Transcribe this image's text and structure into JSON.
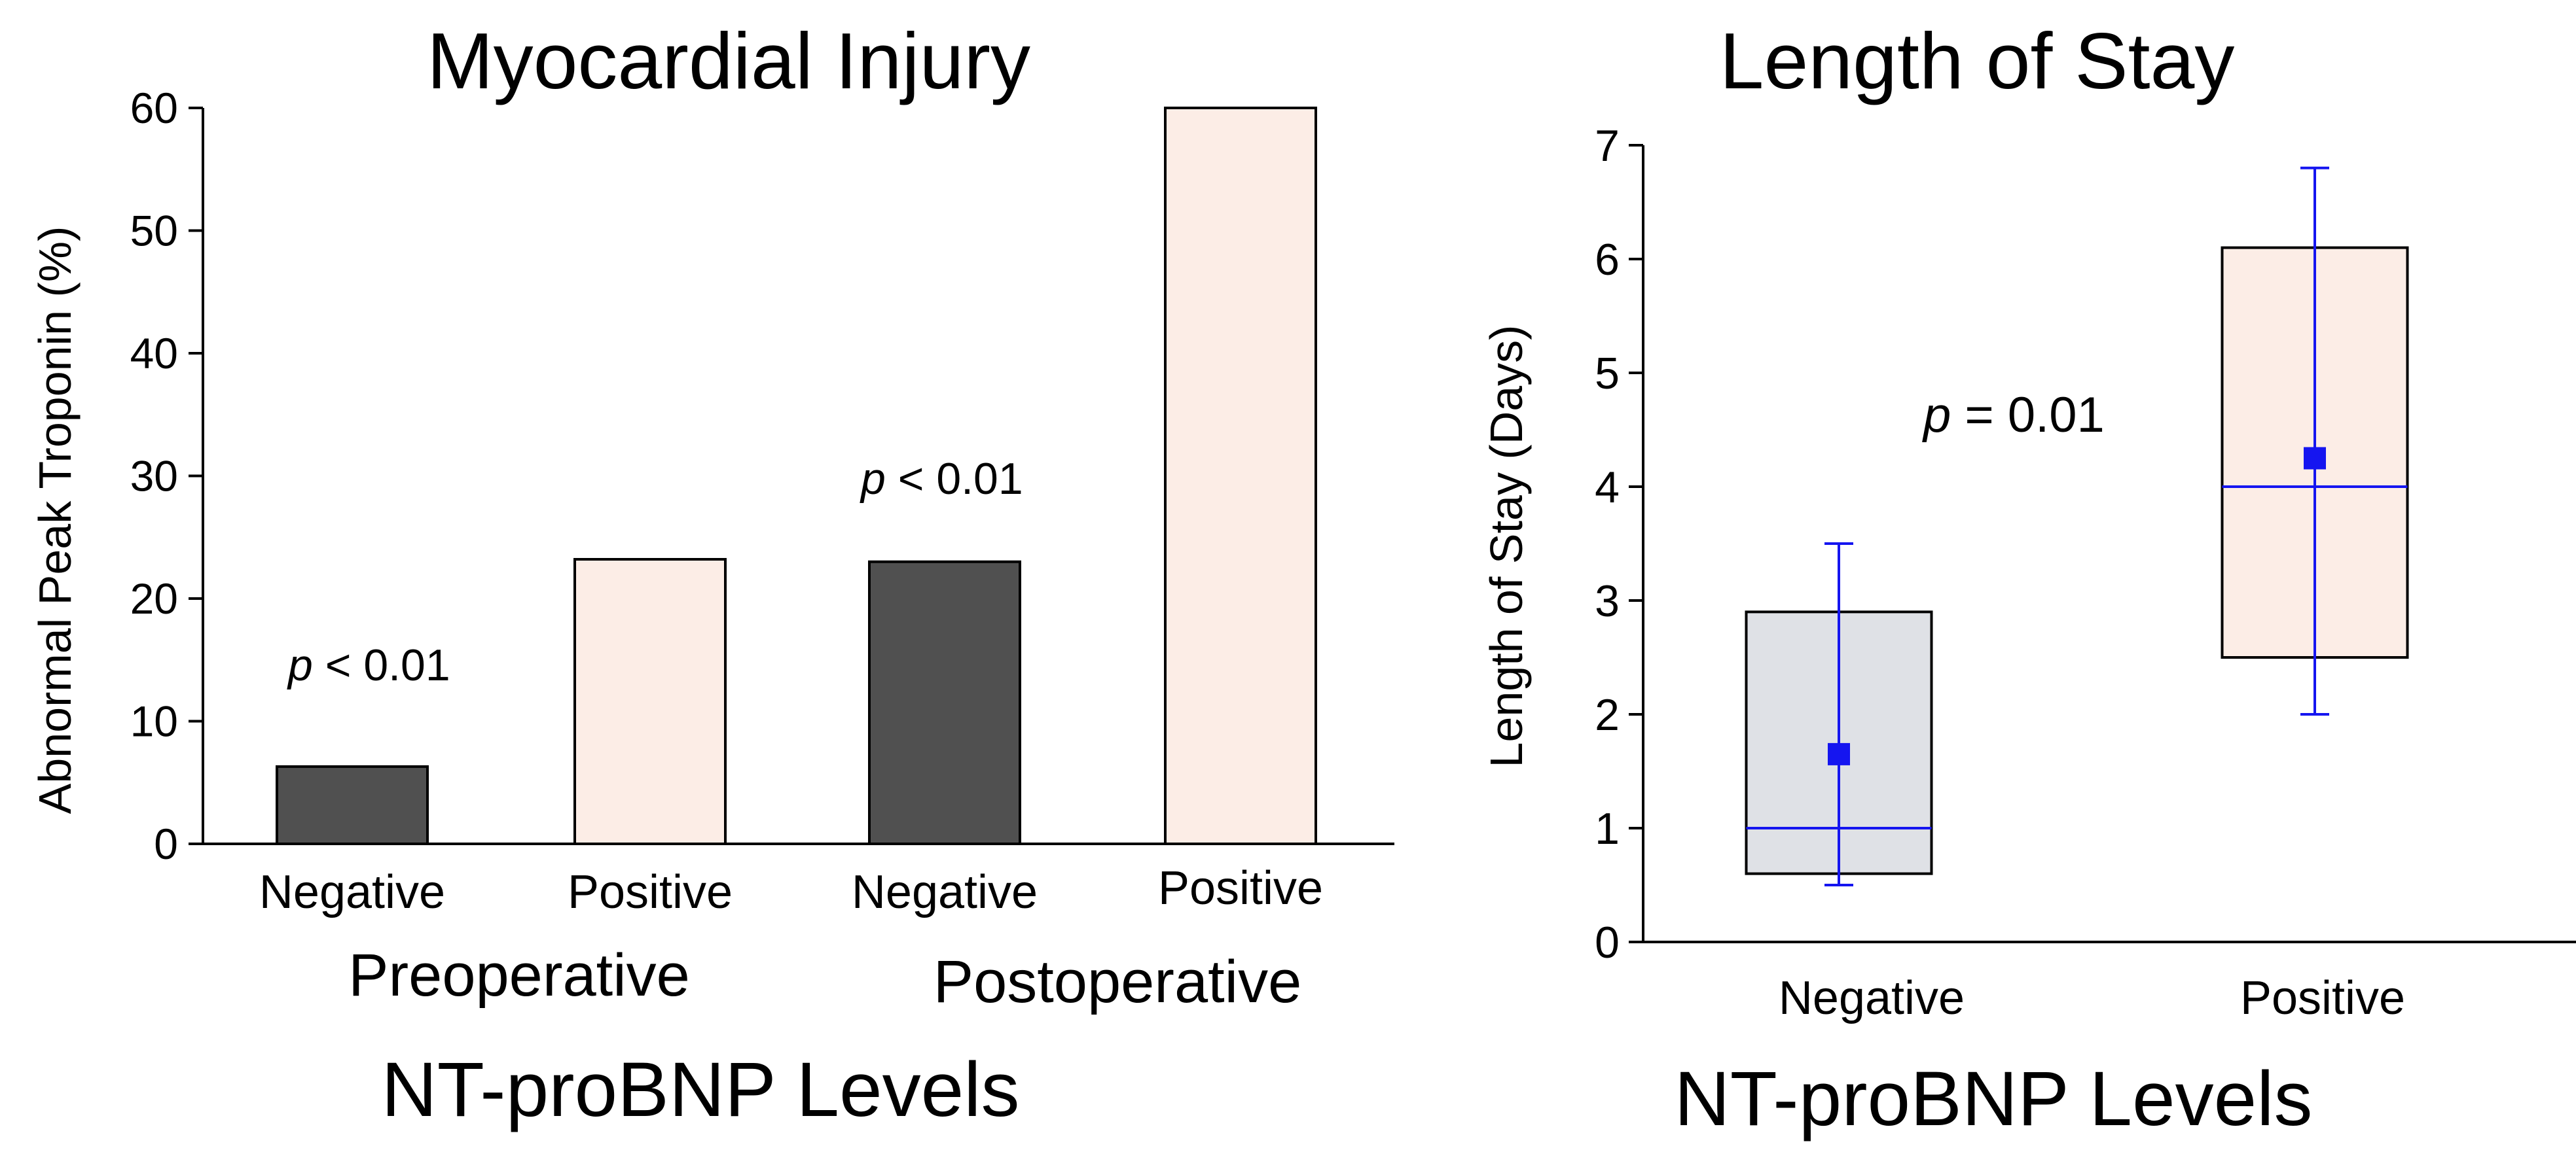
{
  "colors": {
    "dark_bar": "#505050",
    "light_bar": "#fcede6",
    "box_negative": "#dfe1e6",
    "box_positive": "#fcede6",
    "blue": "#1515f0",
    "axis": "#000000"
  },
  "chart_data": [
    {
      "type": "bar",
      "title": "Myocardial Injury",
      "ylabel": "Abnormal Peak Troponin (%)",
      "xlabel": "NT-proBNP Levels",
      "ylim": [
        0,
        60
      ],
      "yticks": [
        0,
        10,
        20,
        30,
        40,
        50,
        60
      ],
      "groups": [
        "Preoperative",
        "Postoperative"
      ],
      "categories": [
        "Negative",
        "Positive",
        "Negative",
        "Positive"
      ],
      "values": [
        6.3,
        23.2,
        23.0,
        60.0
      ],
      "bar_group": [
        0,
        0,
        1,
        1
      ],
      "bar_style": [
        "dark",
        "light",
        "dark",
        "light"
      ],
      "annotations": [
        {
          "prefix": "p",
          "text": " < 0.01",
          "group": "Preoperative"
        },
        {
          "prefix": "p",
          "text": " < 0.01",
          "group": "Postoperative"
        }
      ]
    },
    {
      "type": "box",
      "title": "Length of Stay",
      "ylabel": "Length of Stay (Days)",
      "xlabel": "NT-proBNP Levels",
      "ylim": [
        0,
        7
      ],
      "yticks": [
        0,
        1,
        2,
        3,
        4,
        5,
        6,
        7
      ],
      "categories": [
        "Negative",
        "Positive"
      ],
      "boxes": [
        {
          "name": "Negative",
          "q1": 0.6,
          "median": 1.0,
          "q3": 2.9,
          "min": 0.5,
          "max": 3.5,
          "mean": 1.65
        },
        {
          "name": "Positive",
          "q1": 2.5,
          "median": 4.0,
          "q3": 6.1,
          "min": 2.0,
          "max": 6.8,
          "mean": 4.25
        }
      ],
      "annotation": {
        "prefix": "p",
        "text": " = 0.01"
      }
    }
  ]
}
